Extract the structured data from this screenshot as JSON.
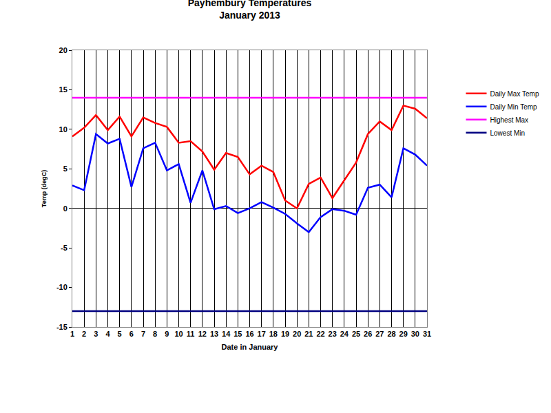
{
  "chart_data": {
    "type": "line",
    "title": "Payhembury Temperatures",
    "subtitle": "January 2013",
    "x_label": "Date in January",
    "y_label": "Temp (degC)",
    "x": [
      1,
      2,
      3,
      4,
      5,
      6,
      7,
      8,
      9,
      10,
      11,
      12,
      13,
      14,
      15,
      16,
      17,
      18,
      19,
      20,
      21,
      22,
      23,
      24,
      25,
      26,
      27,
      28,
      29,
      30,
      31
    ],
    "xlim": [
      1,
      31
    ],
    "xticks": [
      1,
      2,
      3,
      4,
      5,
      6,
      7,
      8,
      9,
      10,
      11,
      12,
      13,
      14,
      15,
      16,
      17,
      18,
      19,
      20,
      21,
      22,
      23,
      24,
      25,
      26,
      27,
      28,
      29,
      30,
      31
    ],
    "ylim": [
      -15,
      20
    ],
    "yticks": [
      -15,
      -10,
      -5,
      0,
      5,
      10,
      15,
      20
    ],
    "grid": "x",
    "legend": "right",
    "marker": "none",
    "series": [
      {
        "name": "Daily Max Temp",
        "color": "#ff0000",
        "values": [
          9.1,
          10.2,
          11.8,
          9.9,
          11.6,
          9.1,
          11.5,
          10.8,
          10.3,
          8.3,
          8.5,
          7.2,
          4.9,
          7.0,
          6.5,
          4.3,
          5.4,
          4.6,
          1.0,
          0.0,
          3.1,
          3.9,
          1.3,
          3.5,
          5.8,
          9.4,
          11.0,
          9.9,
          13.0,
          12.6,
          11.4
        ]
      },
      {
        "name": "Daily Min Temp",
        "color": "#0000ff",
        "values": [
          2.9,
          2.3,
          9.4,
          8.2,
          8.8,
          2.7,
          7.6,
          8.3,
          4.8,
          5.6,
          0.7,
          4.8,
          -0.1,
          0.3,
          -0.6,
          0.0,
          0.8,
          0.1,
          -0.7,
          -1.9,
          -3.0,
          -1.1,
          -0.1,
          -0.3,
          -0.8,
          2.6,
          3.0,
          1.4,
          7.6,
          6.8,
          5.4
        ]
      },
      {
        "name": "Highest Max",
        "color": "#ff00ff",
        "values": [
          14,
          14,
          14,
          14,
          14,
          14,
          14,
          14,
          14,
          14,
          14,
          14,
          14,
          14,
          14,
          14,
          14,
          14,
          14,
          14,
          14,
          14,
          14,
          14,
          14,
          14,
          14,
          14,
          14,
          14,
          14
        ]
      },
      {
        "name": "Lowest Min",
        "color": "#000080",
        "values": [
          -13,
          -13,
          -13,
          -13,
          -13,
          -13,
          -13,
          -13,
          -13,
          -13,
          -13,
          -13,
          -13,
          -13,
          -13,
          -13,
          -13,
          -13,
          -13,
          -13,
          -13,
          -13,
          -13,
          -13,
          -13,
          -13,
          -13,
          -13,
          -13,
          -13,
          -13
        ]
      }
    ]
  }
}
